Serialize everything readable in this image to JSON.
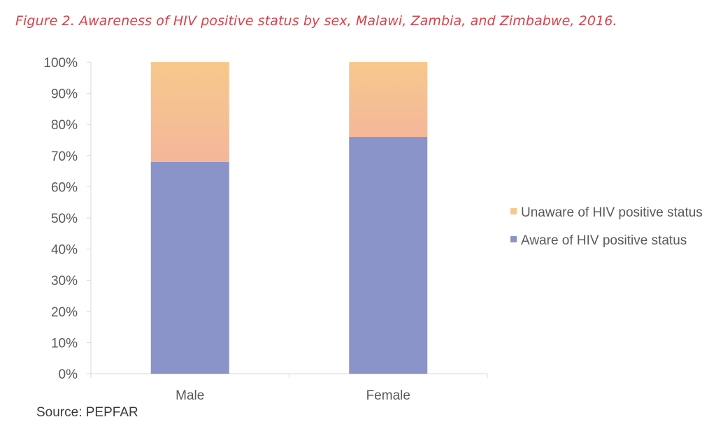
{
  "caption": "Figure 2. Awareness of HIV positive status by sex, Malawi, Zambia, and Zimbabwe, 2016.",
  "source": "Source: PEPFAR",
  "colors": {
    "aware": "#8b94c8",
    "unaware_top": "#f7c88c",
    "unaware_bottom": "#f4b79a",
    "axis": "#d9d9d9",
    "text": "#595959"
  },
  "chart_data": {
    "type": "bar",
    "stacked": true,
    "categories": [
      "Male",
      "Female"
    ],
    "series": [
      {
        "name": "Aware of HIV positive status",
        "values": [
          68,
          76
        ]
      },
      {
        "name": "Unaware of HIV positive status",
        "values": [
          32,
          24
        ]
      }
    ],
    "title": "",
    "xlabel": "",
    "ylabel": "",
    "ylim": [
      0,
      100
    ],
    "yticks": [
      "0%",
      "10%",
      "20%",
      "30%",
      "40%",
      "50%",
      "60%",
      "70%",
      "80%",
      "90%",
      "100%"
    ],
    "grid": false,
    "legend_position": "right"
  }
}
